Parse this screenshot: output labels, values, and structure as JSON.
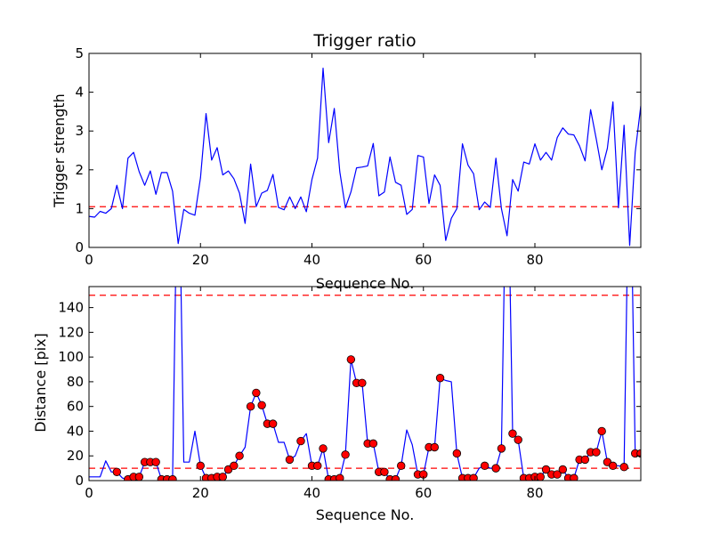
{
  "chart_data": [
    {
      "type": "line",
      "title": "Trigger ratio",
      "xlabel": "Sequence No.",
      "ylabel": "Trigger strength",
      "xlim": [
        0,
        99
      ],
      "ylim": [
        0,
        5
      ],
      "xticks": [
        0,
        20,
        40,
        60,
        80
      ],
      "yticks": [
        0,
        1,
        2,
        3,
        4,
        5
      ],
      "grid": false,
      "series_color": "#0000ff",
      "threshold_color": "#ff0000",
      "threshold": 1.05,
      "x": [
        0,
        1,
        2,
        3,
        4,
        5,
        6,
        7,
        8,
        9,
        10,
        11,
        12,
        13,
        14,
        15,
        16,
        17,
        18,
        19,
        20,
        21,
        22,
        23,
        24,
        25,
        26,
        27,
        28,
        29,
        30,
        31,
        32,
        33,
        34,
        35,
        36,
        37,
        38,
        39,
        40,
        41,
        42,
        43,
        44,
        45,
        46,
        47,
        48,
        49,
        50,
        51,
        52,
        53,
        54,
        55,
        56,
        57,
        58,
        59,
        60,
        61,
        62,
        63,
        64,
        65,
        66,
        67,
        68,
        69,
        70,
        71,
        72,
        73,
        74,
        75,
        76,
        77,
        78,
        79,
        80,
        81,
        82,
        83,
        84,
        85,
        86,
        87,
        88,
        89,
        90,
        91,
        92,
        93,
        94,
        95,
        96,
        97,
        98,
        99
      ],
      "values": [
        0.8,
        0.78,
        0.93,
        0.88,
        1.0,
        1.6,
        1.0,
        2.3,
        2.45,
        1.95,
        1.6,
        1.97,
        1.37,
        1.93,
        1.93,
        1.45,
        0.1,
        0.98,
        0.88,
        0.83,
        1.8,
        3.45,
        2.25,
        2.57,
        1.87,
        1.97,
        1.77,
        1.4,
        0.62,
        2.15,
        1.05,
        1.4,
        1.47,
        1.88,
        1.03,
        0.97,
        1.3,
        1.0,
        1.3,
        0.92,
        1.75,
        2.3,
        4.62,
        2.7,
        3.58,
        1.95,
        1.02,
        1.43,
        2.05,
        2.07,
        2.1,
        2.68,
        1.33,
        1.43,
        2.33,
        1.68,
        1.6,
        0.85,
        0.98,
        2.37,
        2.33,
        1.13,
        1.87,
        1.6,
        0.18,
        0.75,
        1.0,
        2.67,
        2.12,
        1.9,
        0.97,
        1.17,
        1.03,
        2.3,
        1.0,
        0.3,
        1.75,
        1.45,
        2.2,
        2.15,
        2.67,
        2.25,
        2.45,
        2.25,
        2.83,
        3.08,
        2.92,
        2.9,
        2.62,
        2.23,
        3.55,
        2.8,
        2.0,
        2.55,
        3.75,
        1.02,
        3.15,
        0.05,
        2.45,
        3.65
      ]
    },
    {
      "type": "line",
      "title": "",
      "xlabel": "Sequence No.",
      "ylabel": "Distance [pix]",
      "xlim": [
        0,
        99
      ],
      "ylim": [
        0,
        157
      ],
      "xticks": [
        0,
        20,
        40,
        60,
        80
      ],
      "yticks": [
        0,
        20,
        40,
        60,
        80,
        100,
        120,
        140
      ],
      "grid": false,
      "series_color": "#0000ff",
      "marker_color": "#ff0000",
      "threshold_color": "#ff0000",
      "thresholds": [
        150,
        10
      ],
      "x": [
        0,
        1,
        2,
        3,
        4,
        5,
        6,
        7,
        8,
        9,
        10,
        11,
        12,
        13,
        14,
        15,
        16,
        17,
        18,
        19,
        20,
        21,
        22,
        23,
        24,
        25,
        26,
        27,
        28,
        29,
        30,
        31,
        32,
        33,
        34,
        35,
        36,
        37,
        38,
        39,
        40,
        41,
        42,
        43,
        44,
        45,
        46,
        47,
        48,
        49,
        50,
        51,
        52,
        53,
        54,
        55,
        56,
        57,
        58,
        59,
        60,
        61,
        62,
        63,
        64,
        65,
        66,
        67,
        68,
        69,
        70,
        71,
        72,
        73,
        74,
        75,
        76,
        77,
        78,
        79,
        80,
        81,
        82,
        83,
        84,
        85,
        86,
        87,
        88,
        89,
        90,
        91,
        92,
        93,
        94,
        95,
        96,
        97,
        98,
        99
      ],
      "values": [
        3,
        3,
        3,
        16,
        7,
        7,
        2,
        1,
        3,
        3,
        15,
        15,
        15,
        1,
        1,
        1,
        300,
        15,
        15,
        40,
        12,
        2,
        2,
        3,
        3,
        9,
        12,
        20,
        27,
        60,
        71,
        61,
        46,
        46,
        31,
        31,
        17,
        20,
        32,
        38,
        12,
        12,
        26,
        1,
        1,
        2,
        21,
        98,
        79,
        79,
        30,
        30,
        7,
        7,
        1,
        1,
        12,
        41,
        29,
        5,
        5,
        27,
        27,
        83,
        81,
        80,
        22,
        2,
        2,
        2,
        10,
        12,
        10,
        10,
        26,
        300,
        38,
        33,
        2,
        2,
        3,
        3,
        9,
        5,
        5,
        9,
        2,
        2,
        17,
        17,
        23,
        23,
        40,
        15,
        12,
        12,
        11,
        300,
        22,
        22
      ],
      "markers": [
        0,
        0,
        0,
        0,
        0,
        1,
        0,
        1,
        1,
        1,
        1,
        1,
        1,
        1,
        1,
        1,
        0,
        0,
        0,
        0,
        1,
        1,
        1,
        1,
        1,
        1,
        1,
        1,
        0,
        1,
        1,
        1,
        1,
        1,
        0,
        0,
        1,
        0,
        1,
        0,
        1,
        1,
        1,
        1,
        1,
        1,
        1,
        1,
        1,
        1,
        1,
        1,
        1,
        1,
        1,
        1,
        1,
        0,
        0,
        1,
        1,
        1,
        1,
        1,
        0,
        0,
        1,
        1,
        1,
        1,
        0,
        1,
        0,
        1,
        1,
        0,
        1,
        1,
        1,
        1,
        1,
        1,
        1,
        1,
        1,
        1,
        1,
        1,
        1,
        1,
        1,
        1,
        1,
        1,
        1,
        0,
        1,
        0,
        1,
        1
      ]
    }
  ]
}
